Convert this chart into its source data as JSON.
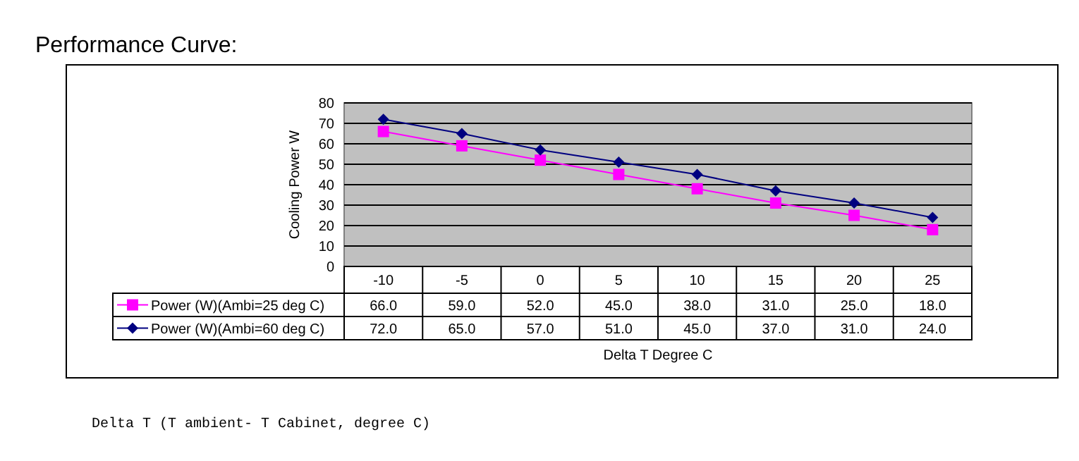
{
  "chart_data": {
    "type": "line",
    "title": "Performance Curve:",
    "xlabel": "Delta T Degree C",
    "ylabel": "Cooling Power W",
    "categories": [
      "-10",
      "-5",
      "0",
      "5",
      "10",
      "15",
      "20",
      "25"
    ],
    "series": [
      {
        "name": "Power (W)(Ambi=25 deg C)",
        "color": "#ff00ff",
        "marker": "square",
        "values": [
          66,
          59,
          52,
          45,
          38,
          31,
          25,
          18
        ],
        "value_labels": [
          "66.0",
          "59.0",
          "52.0",
          "45.0",
          "38.0",
          "31.0",
          "25.0",
          "18.0"
        ]
      },
      {
        "name": "Power (W)(Ambi=60 deg C)",
        "color": "#000080",
        "marker": "diamond",
        "values": [
          72,
          65,
          57,
          51,
          45,
          37,
          31,
          24
        ],
        "value_labels": [
          "72.0",
          "65.0",
          "57.0",
          "51.0",
          "45.0",
          "37.0",
          "31.0",
          "24.0"
        ]
      }
    ],
    "ylim": [
      0,
      80
    ],
    "yticks": [
      0,
      10,
      20,
      30,
      40,
      50,
      60,
      70,
      80
    ],
    "grid": "y",
    "legend": "bottom left",
    "annotations": [
      "Delta T (T ambient- T Cabinet, degree C)"
    ]
  }
}
